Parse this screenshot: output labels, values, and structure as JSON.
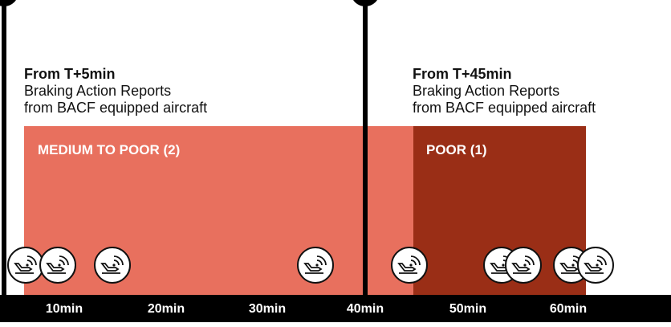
{
  "panels": [
    {
      "heading": "From T+5min",
      "lines": [
        "Braking Action Reports",
        "from BACF equipped aircraft"
      ],
      "band": "MEDIUM TO POOR (2)"
    },
    {
      "heading": "From T+45min",
      "lines": [
        "Braking Action Reports",
        "from BACF equipped aircraft"
      ],
      "band": "POOR (1)"
    }
  ],
  "timeline": [
    "10min",
    "20min",
    "30min",
    "40min",
    "50min",
    "60min"
  ]
}
